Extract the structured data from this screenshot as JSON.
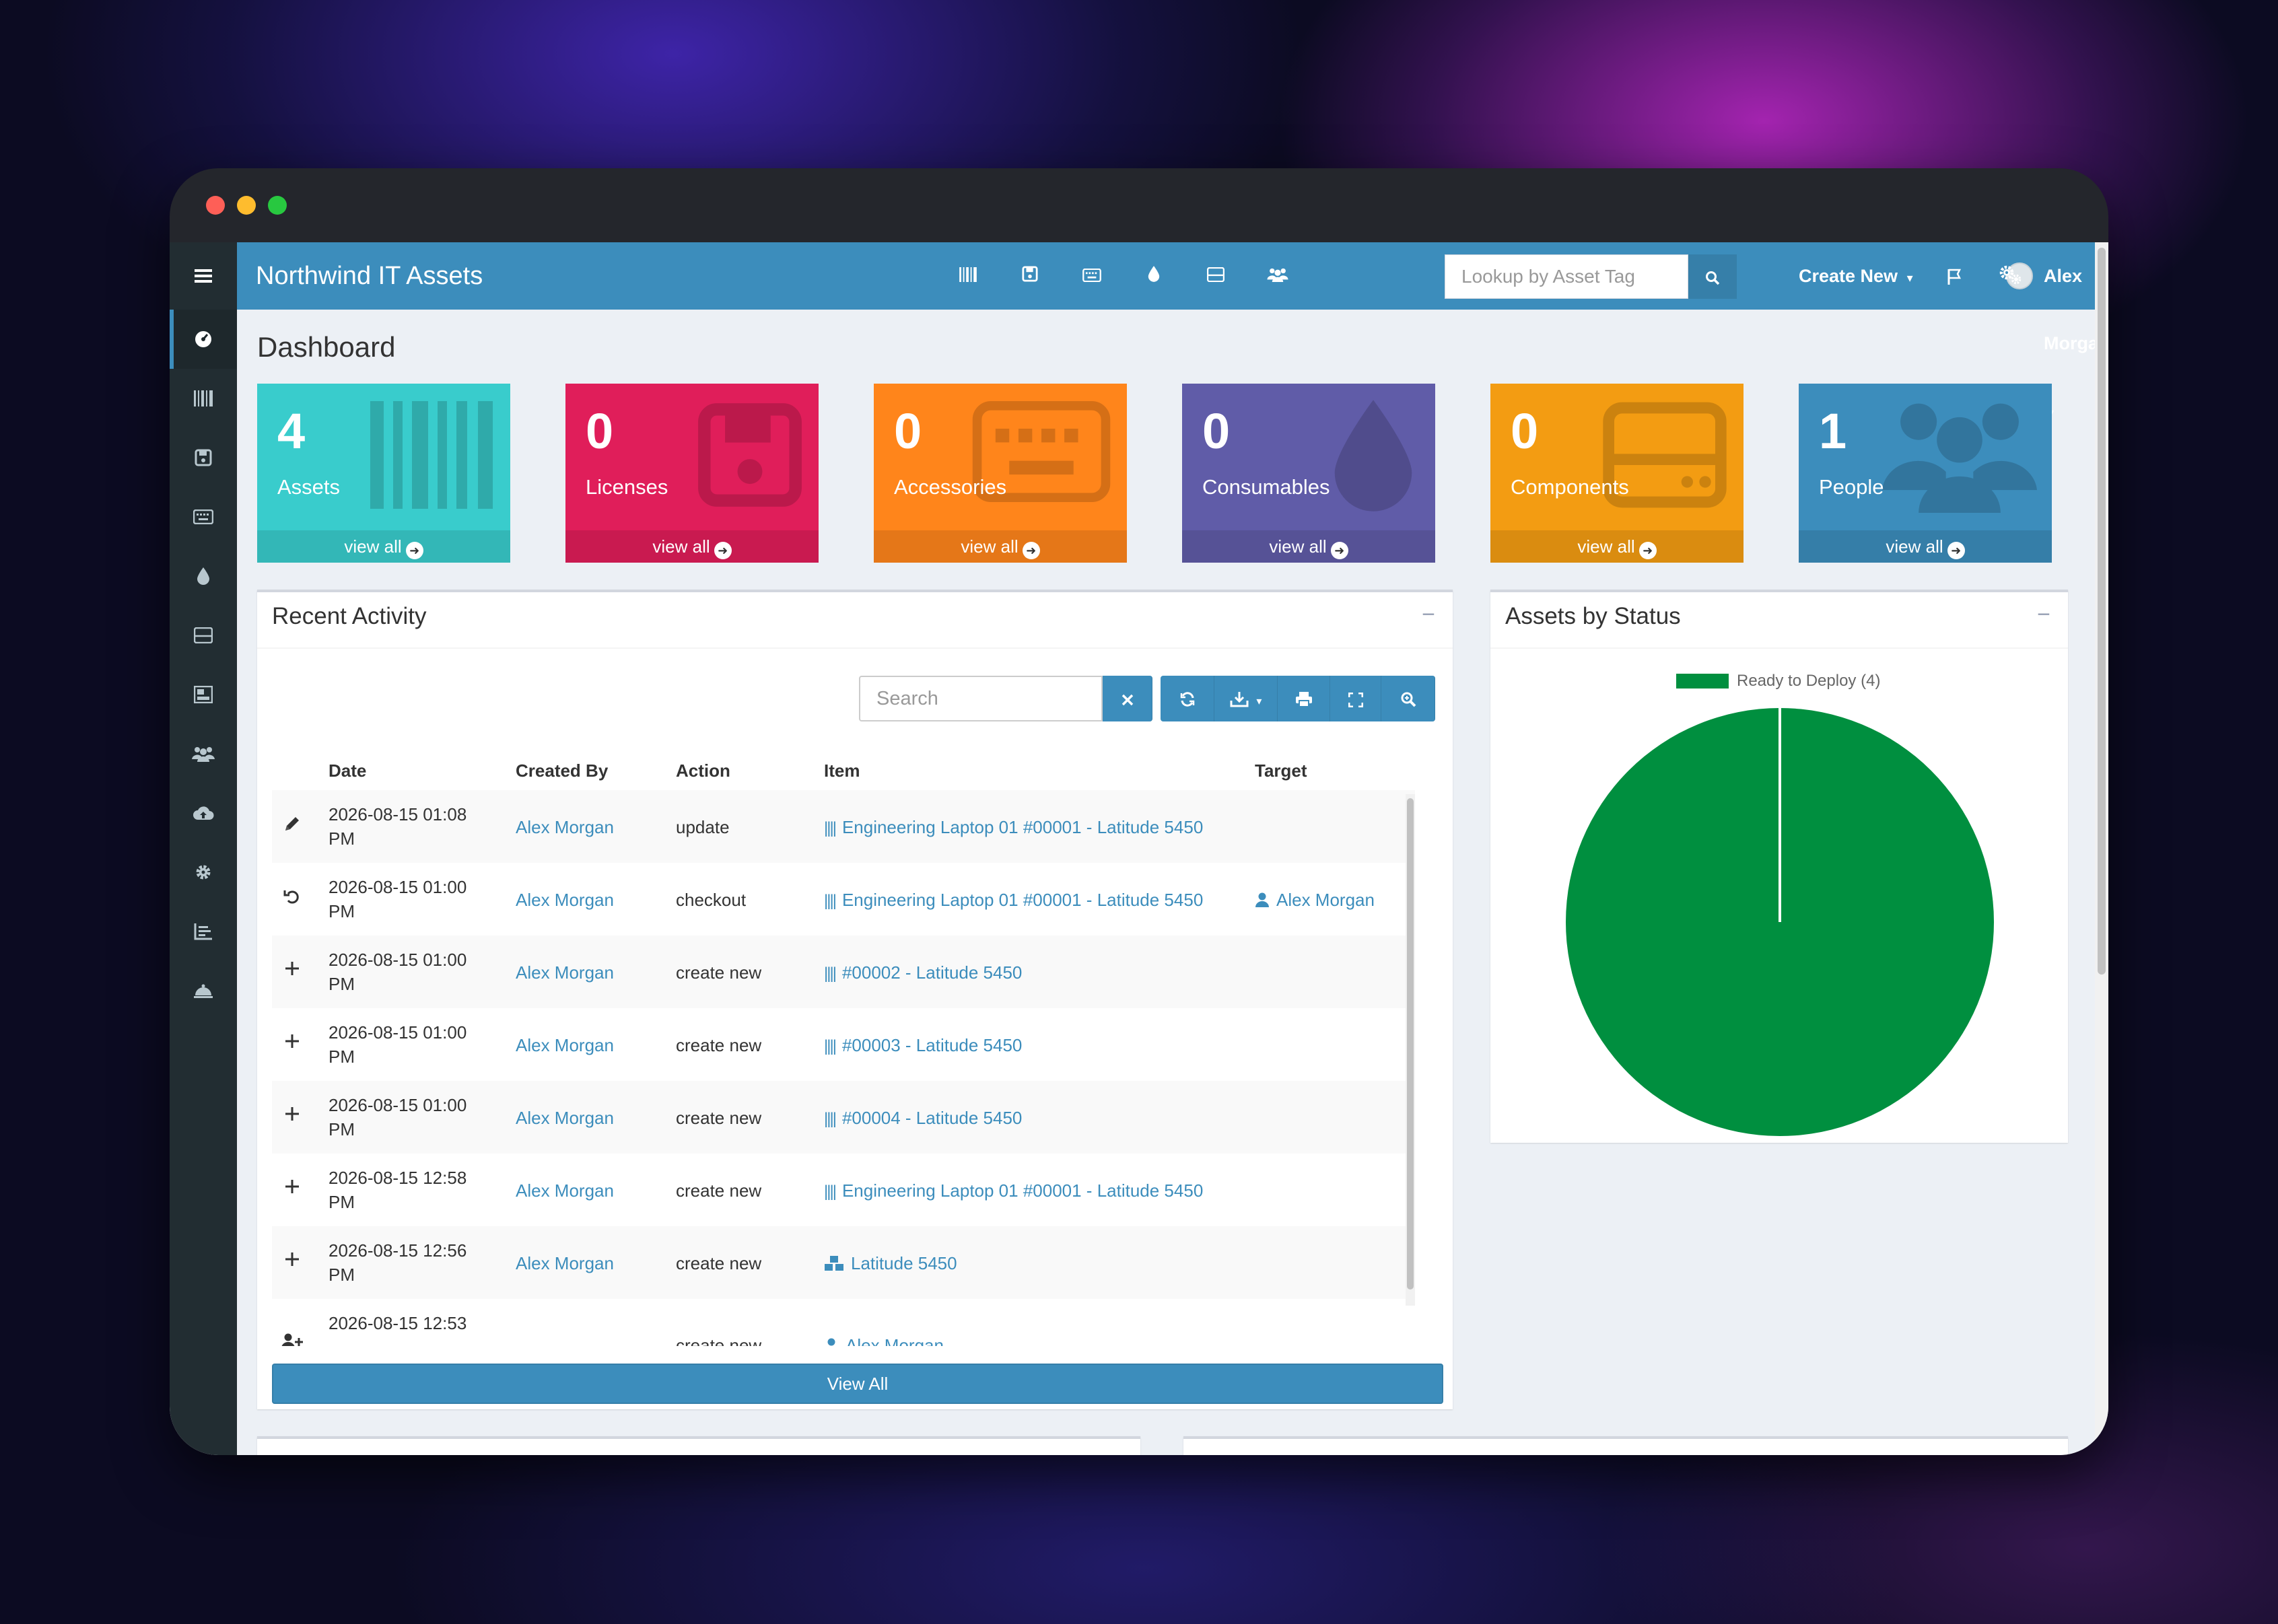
{
  "app": {
    "brand": "Northwind IT Assets",
    "search_placeholder": "Lookup by Asset Tag",
    "create_new_label": "Create New",
    "user_name": "Alex Morgan",
    "accent": "#3c8dbc",
    "sidebar_dark": "#222d32"
  },
  "nav_icons": [
    "barcode-icon",
    "floppy-icon",
    "keyboard-icon",
    "droplet-icon",
    "hdd-icon",
    "users-icon"
  ],
  "sidebar_icons": [
    "dashboard-icon",
    "barcode-icon",
    "floppy-icon",
    "keyboard-icon",
    "droplet-icon",
    "hdd-icon",
    "image-icon",
    "users-icon",
    "cloud-upload-icon",
    "gear-icon",
    "chart-icon",
    "bell-icon"
  ],
  "page_title": "Dashboard",
  "tiles": [
    {
      "count": "4",
      "label": "Assets",
      "footer": "view all",
      "color": "#39cccc",
      "icon": "barcode-icon"
    },
    {
      "count": "0",
      "label": "Licenses",
      "footer": "view all",
      "color": "#e01e5a",
      "icon": "floppy-icon"
    },
    {
      "count": "0",
      "label": "Accessories",
      "footer": "view all",
      "color": "#ff851b",
      "icon": "keyboard-icon"
    },
    {
      "count": "0",
      "label": "Consumables",
      "footer": "view all",
      "color": "#605ca8",
      "icon": "droplet-icon"
    },
    {
      "count": "0",
      "label": "Components",
      "footer": "view all",
      "color": "#f39c12",
      "icon": "hdd-icon"
    },
    {
      "count": "1",
      "label": "People",
      "footer": "view all",
      "color": "#3c8dbc",
      "icon": "users-icon"
    }
  ],
  "recent_activity": {
    "title": "Recent Activity",
    "collapse": "−",
    "search_placeholder": "Search",
    "columns": [
      "Date",
      "Created By",
      "Action",
      "Item",
      "Target"
    ],
    "rows": [
      {
        "icon": "pencil-icon",
        "date": "2026-08-15 01:08 PM",
        "created_by": "Alex Morgan",
        "action": "update",
        "item_icon": "barcode-icon",
        "item": "Engineering Laptop 01 #00001 - Latitude 5450",
        "target": ""
      },
      {
        "icon": "undo-icon",
        "date": "2026-08-15 01:00 PM",
        "created_by": "Alex Morgan",
        "action": "checkout",
        "item_icon": "barcode-icon",
        "item": "Engineering Laptop 01 #00001 - Latitude 5450",
        "target": "Alex Morgan"
      },
      {
        "icon": "plus-icon",
        "date": "2026-08-15 01:00 PM",
        "created_by": "Alex Morgan",
        "action": "create new",
        "item_icon": "barcode-icon",
        "item": "#00002 - Latitude 5450",
        "target": ""
      },
      {
        "icon": "plus-icon",
        "date": "2026-08-15 01:00 PM",
        "created_by": "Alex Morgan",
        "action": "create new",
        "item_icon": "barcode-icon",
        "item": "#00003 - Latitude 5450",
        "target": ""
      },
      {
        "icon": "plus-icon",
        "date": "2026-08-15 01:00 PM",
        "created_by": "Alex Morgan",
        "action": "create new",
        "item_icon": "barcode-icon",
        "item": "#00004 - Latitude 5450",
        "target": ""
      },
      {
        "icon": "plus-icon",
        "date": "2026-08-15 12:58 PM",
        "created_by": "Alex Morgan",
        "action": "create new",
        "item_icon": "barcode-icon",
        "item": "Engineering Laptop 01 #00001 - Latitude 5450",
        "target": ""
      },
      {
        "icon": "plus-icon",
        "date": "2026-08-15 12:56 PM",
        "created_by": "Alex Morgan",
        "action": "create new",
        "item_icon": "cubes-icon",
        "item": "Latitude 5450",
        "target": ""
      },
      {
        "icon": "user-plus-icon",
        "date": "2026-08-15 12:53",
        "created_by": "",
        "action": "create new",
        "item_icon": "user-icon",
        "item": "Alex Morgan",
        "target": ""
      }
    ],
    "view_all_label": "View All"
  },
  "assets_by_status": {
    "title": "Assets by Status",
    "collapse": "−"
  },
  "chart_data": {
    "type": "pie",
    "title": "Assets by Status",
    "legend_position": "top",
    "slices": [
      {
        "label": "Ready to Deploy (4)",
        "value": 4,
        "color": "#008f3f"
      }
    ]
  }
}
